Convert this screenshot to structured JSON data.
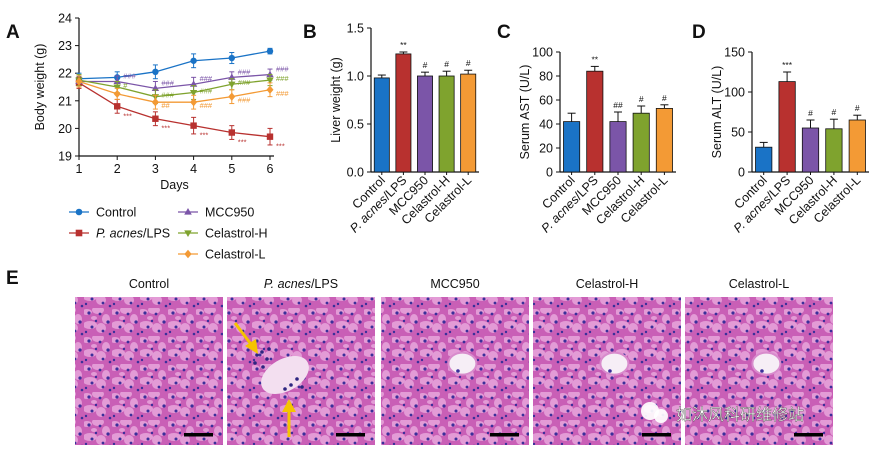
{
  "panel_letters": [
    "A",
    "B",
    "C",
    "D",
    "E"
  ],
  "colors": {
    "control": "#1a73c6",
    "lps": "#b8312f",
    "mcc950": "#7b55a8",
    "celastrol_h": "#7fa32e",
    "celastrol_l": "#f39a35",
    "annotation_arrow": "#f5c400"
  },
  "legend": {
    "items": [
      {
        "key": "control",
        "text": "Control",
        "marker": "circle"
      },
      {
        "key": "lps",
        "text_italic": "P. acnes",
        "text": "/LPS",
        "marker": "square"
      },
      {
        "key": "mcc950",
        "text": "MCC950",
        "marker": "triangle-up"
      },
      {
        "key": "celastrol_h",
        "text": "Celastrol-H",
        "marker": "triangle-down"
      },
      {
        "key": "celastrol_l",
        "text": "Celastrol-L",
        "marker": "diamond"
      }
    ]
  },
  "chart_data": [
    {
      "panel": "A",
      "type": "line",
      "xlabel": "Days",
      "ylabel": "Body weight (g)",
      "x": [
        1,
        2,
        3,
        4,
        5,
        6
      ],
      "xlim": [
        1,
        6
      ],
      "ylim": [
        19,
        24
      ],
      "yticks": [
        19,
        20,
        21,
        22,
        23,
        24
      ],
      "series": [
        {
          "key": "control",
          "name": "Control",
          "values": [
            21.8,
            21.85,
            22.05,
            22.45,
            22.55,
            22.8
          ],
          "errors": [
            0.2,
            0.2,
            0.25,
            0.25,
            0.2,
            0.1
          ],
          "marks": [
            "",
            "",
            "",
            "",
            "",
            ""
          ]
        },
        {
          "key": "lps",
          "name": "P. acnes/LPS",
          "values": [
            21.65,
            20.8,
            20.35,
            20.1,
            19.85,
            19.7
          ],
          "errors": [
            0.2,
            0.25,
            0.25,
            0.3,
            0.25,
            0.3
          ],
          "marks": [
            "",
            "***",
            "***",
            "***",
            "***",
            "***"
          ]
        },
        {
          "key": "mcc950",
          "name": "MCC950",
          "values": [
            21.7,
            21.7,
            21.45,
            21.6,
            21.85,
            21.95
          ],
          "errors": [
            0.2,
            0.2,
            0.25,
            0.25,
            0.2,
            0.2
          ],
          "marks": [
            "",
            "###",
            "###",
            "###",
            "###",
            "###"
          ]
        },
        {
          "key": "celastrol_h",
          "name": "Celastrol-H",
          "values": [
            21.75,
            21.5,
            21.15,
            21.3,
            21.6,
            21.75
          ],
          "errors": [
            0.2,
            0.2,
            0.25,
            0.25,
            0.2,
            0.2
          ],
          "marks": [
            "",
            "#",
            "###",
            "###",
            "###",
            "###"
          ]
        },
        {
          "key": "celastrol_l",
          "name": "Celastrol-L",
          "values": [
            21.7,
            21.25,
            20.95,
            20.95,
            21.15,
            21.4
          ],
          "errors": [
            0.2,
            0.2,
            0.25,
            0.25,
            0.25,
            0.25
          ],
          "marks": [
            "",
            "",
            "##",
            "###",
            "###",
            "###"
          ]
        }
      ]
    },
    {
      "panel": "B",
      "type": "bar",
      "ylabel": "Liver weight (g)",
      "ylim": [
        0,
        1.5
      ],
      "yticks": [
        "0.0",
        "0.5",
        "1.0",
        "1.5"
      ],
      "categories": [
        "Control",
        "P. acnes/LPS",
        "MCC950",
        "Celastrol-H",
        "Celastrol-L"
      ],
      "values": [
        0.98,
        1.23,
        1.0,
        1.0,
        1.02
      ],
      "errors": [
        0.03,
        0.02,
        0.04,
        0.05,
        0.04
      ],
      "marks": [
        "",
        "**",
        "#",
        "#",
        "#"
      ]
    },
    {
      "panel": "C",
      "type": "bar",
      "ylabel": "Serum AST (U/L)",
      "ylim": [
        0,
        100
      ],
      "yticks": [
        "0",
        "20",
        "40",
        "60",
        "80",
        "100"
      ],
      "categories": [
        "Control",
        "P. acnes/LPS",
        "MCC950",
        "Celastrol-H",
        "Celastrol-L"
      ],
      "values": [
        42,
        84,
        42,
        49,
        53
      ],
      "errors": [
        7,
        4,
        8,
        6,
        3
      ],
      "marks": [
        "",
        "**",
        "##",
        "#",
        "#"
      ]
    },
    {
      "panel": "D",
      "type": "bar",
      "ylabel": "Serum ALT (U/L)",
      "ylim": [
        0,
        150
      ],
      "yticks": [
        "0",
        "50",
        "100",
        "150"
      ],
      "categories": [
        "Control",
        "P. acnes/LPS",
        "MCC950",
        "Celastrol-H",
        "Celastrol-L"
      ],
      "values": [
        31,
        113,
        55,
        54,
        65
      ],
      "errors": [
        6,
        12,
        10,
        12,
        6
      ],
      "marks": [
        "",
        "***",
        "#",
        "#",
        "#"
      ]
    }
  ],
  "histology": {
    "titles": [
      {
        "italic": "",
        "text": "Control"
      },
      {
        "italic": "P. acnes",
        "text": "/LPS"
      },
      {
        "italic": "",
        "text": "MCC950"
      },
      {
        "italic": "",
        "text": "Celastrol-H"
      },
      {
        "italic": "",
        "text": "Celastrol-L"
      }
    ],
    "has_vein": [
      false,
      false,
      true,
      true,
      true
    ]
  },
  "watermark": {
    "text": "如沐风科研维修站",
    "icon": "wechat-icon"
  }
}
